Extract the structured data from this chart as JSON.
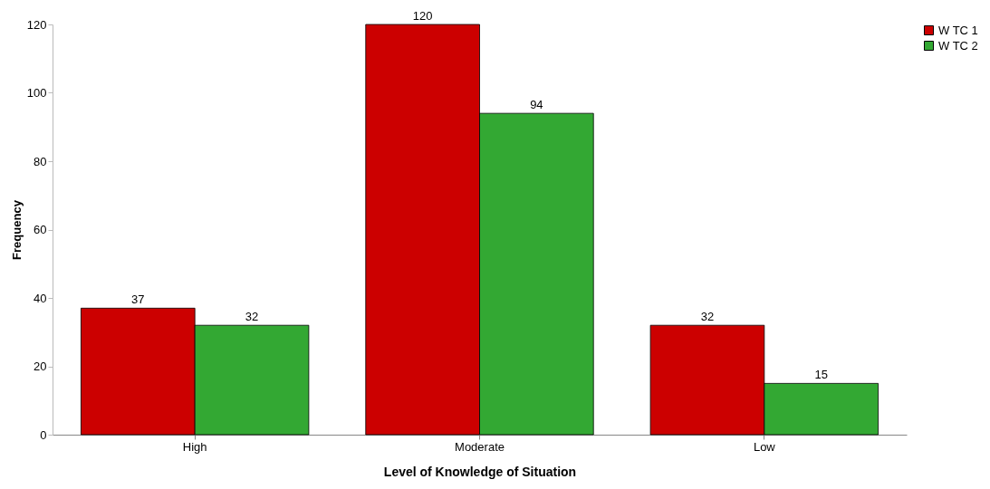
{
  "chart_data": {
    "type": "bar",
    "xlabel": "Level of Knowledge of Situation",
    "ylabel": "Frequency",
    "categories": [
      "High",
      "Moderate",
      "Low"
    ],
    "series": [
      {
        "name": "W TC 1",
        "color": "#cc0000",
        "values": [
          37,
          120,
          32
        ]
      },
      {
        "name": "W TC 2",
        "color": "#33a833",
        "values": [
          32,
          94,
          15
        ]
      }
    ],
    "ylim": [
      0,
      120
    ],
    "yticks": [
      0,
      20,
      40,
      60,
      80,
      100,
      120
    ],
    "grid": false,
    "legend": "right",
    "data_labels": true
  }
}
